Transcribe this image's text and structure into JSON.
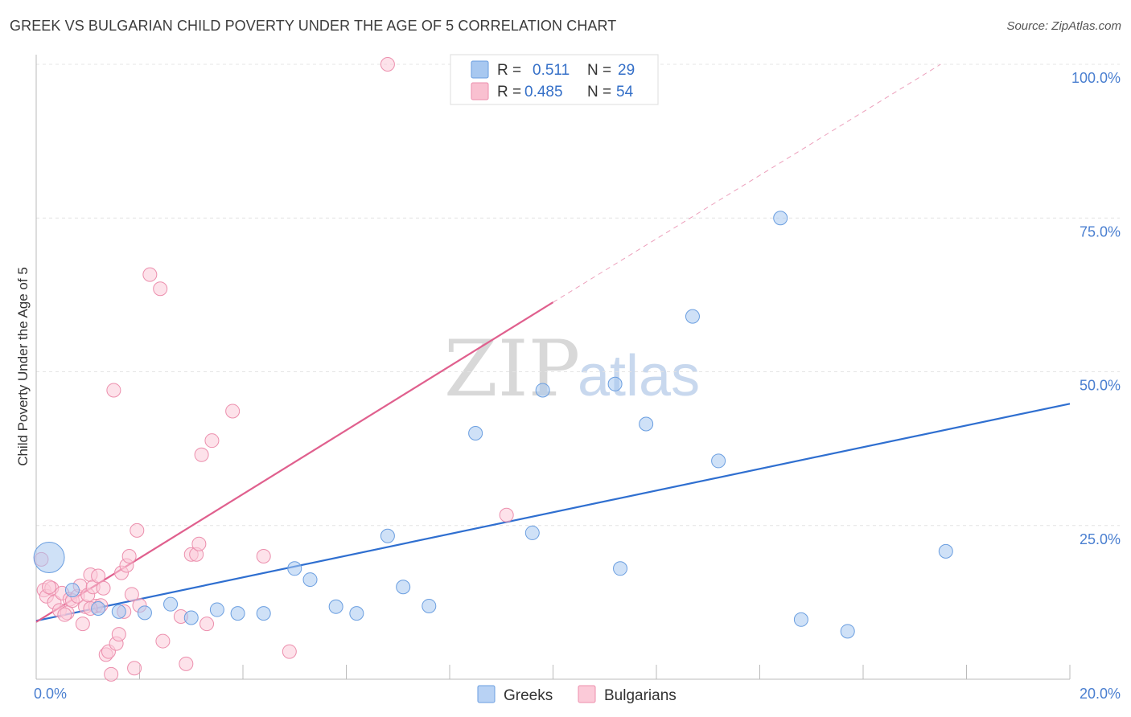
{
  "title": "GREEK VS BULGARIAN CHILD POVERTY UNDER THE AGE OF 5 CORRELATION CHART",
  "source": "Source: ZipAtlas.com",
  "watermark": {
    "zip": "ZIP",
    "atlas": "atlas"
  },
  "legend": {
    "r_label": "R =",
    "n_label": "N =",
    "rows": [
      {
        "r": "0.511",
        "n": "29",
        "color": "#a8c8f0",
        "stroke": "#6a9ee0"
      },
      {
        "r": "0.485",
        "n": "54",
        "color": "#f9c0d0",
        "stroke": "#ec8fad"
      }
    ]
  },
  "bottom_legend": [
    {
      "label": "Greeks",
      "color": "#b8d2f4",
      "stroke": "#6a9ee0"
    },
    {
      "label": "Bulgarians",
      "color": "#fbcad8",
      "stroke": "#ec8fad"
    }
  ],
  "chart_data": {
    "type": "scatter",
    "title": "GREEK VS BULGARIAN CHILD POVERTY UNDER THE AGE OF 5 CORRELATION CHART",
    "xlabel": "",
    "ylabel": "Child Poverty Under the Age of 5",
    "xlim": [
      0,
      20
    ],
    "ylim": [
      0,
      100
    ],
    "x_tick_labels": [
      "0.0%",
      "20.0%"
    ],
    "y_ticks": [
      25,
      50,
      75,
      100
    ],
    "y_tick_labels": [
      "25.0%",
      "50.0%",
      "75.0%",
      "100.0%"
    ],
    "series": [
      {
        "name": "Greeks",
        "color": "#a8c8f0",
        "stroke": "#6a9ee0",
        "line_color": "#2f6fd0",
        "trend": {
          "x0": 0,
          "y0": 9.5,
          "x1": 20,
          "y1": 44.8,
          "dashed_to": null
        },
        "points": [
          [
            0.25,
            19.8,
            "big"
          ],
          [
            0.7,
            14.5
          ],
          [
            1.2,
            11.5
          ],
          [
            1.6,
            11
          ],
          [
            2.1,
            10.8
          ],
          [
            2.6,
            12.2
          ],
          [
            3.0,
            10.0
          ],
          [
            3.5,
            11.3
          ],
          [
            3.9,
            10.7
          ],
          [
            4.4,
            10.7
          ],
          [
            5.0,
            18.0
          ],
          [
            5.3,
            16.2
          ],
          [
            5.8,
            11.8
          ],
          [
            6.2,
            10.7
          ],
          [
            6.8,
            23.3
          ],
          [
            7.1,
            15.0
          ],
          [
            7.6,
            11.9
          ],
          [
            8.5,
            40.0
          ],
          [
            9.8,
            47.0
          ],
          [
            9.6,
            23.8
          ],
          [
            11.2,
            48.0
          ],
          [
            11.3,
            18.0
          ],
          [
            11.8,
            41.5
          ],
          [
            12.7,
            59.0
          ],
          [
            13.2,
            35.5
          ],
          [
            14.4,
            75.0
          ],
          [
            14.8,
            9.7
          ],
          [
            15.7,
            7.8
          ],
          [
            17.6,
            20.8
          ]
        ]
      },
      {
        "name": "Bulgarians",
        "color": "#fbcad8",
        "stroke": "#ec8fad",
        "line_color": "#e0608e",
        "trend": {
          "x0": 0,
          "y0": 9.3,
          "x1": 10.0,
          "y1": 61.3,
          "dashed_to": [
            17.5,
            100
          ]
        },
        "points": [
          [
            0.1,
            19.5
          ],
          [
            0.15,
            14.5
          ],
          [
            0.2,
            13.5
          ],
          [
            0.3,
            14.8
          ],
          [
            0.35,
            12.5
          ],
          [
            0.45,
            11.2
          ],
          [
            0.5,
            14.0
          ],
          [
            0.6,
            10.8
          ],
          [
            0.65,
            13.0
          ],
          [
            0.7,
            12.8
          ],
          [
            0.8,
            13.5
          ],
          [
            0.85,
            15.2
          ],
          [
            0.9,
            9.0
          ],
          [
            0.95,
            11.8
          ],
          [
            1.0,
            13.7
          ],
          [
            1.05,
            17.0
          ],
          [
            1.1,
            15.0
          ],
          [
            1.15,
            11.9
          ],
          [
            1.2,
            16.8
          ],
          [
            1.25,
            12.0
          ],
          [
            1.3,
            14.8
          ],
          [
            1.35,
            4.0
          ],
          [
            1.4,
            4.5
          ],
          [
            1.45,
            0.8
          ],
          [
            1.5,
            47.0
          ],
          [
            1.55,
            5.8
          ],
          [
            1.6,
            7.3
          ],
          [
            1.65,
            17.3
          ],
          [
            1.7,
            11.0
          ],
          [
            1.75,
            18.5
          ],
          [
            1.8,
            20.0
          ],
          [
            1.85,
            13.8
          ],
          [
            1.9,
            1.8
          ],
          [
            1.95,
            24.2
          ],
          [
            2.0,
            12.0
          ],
          [
            2.2,
            65.8
          ],
          [
            2.4,
            63.5
          ],
          [
            2.45,
            6.2
          ],
          [
            2.8,
            10.2
          ],
          [
            3.0,
            20.3
          ],
          [
            3.1,
            20.3
          ],
          [
            3.15,
            22.0
          ],
          [
            3.2,
            36.5
          ],
          [
            3.3,
            9.0
          ],
          [
            3.4,
            38.8
          ],
          [
            3.8,
            43.6
          ],
          [
            4.4,
            20.0
          ],
          [
            4.9,
            4.5
          ],
          [
            6.8,
            100.0
          ],
          [
            9.1,
            26.7
          ],
          [
            2.9,
            2.5
          ],
          [
            0.55,
            10.5
          ],
          [
            1.05,
            11.5
          ],
          [
            0.25,
            15.0
          ]
        ]
      }
    ]
  }
}
